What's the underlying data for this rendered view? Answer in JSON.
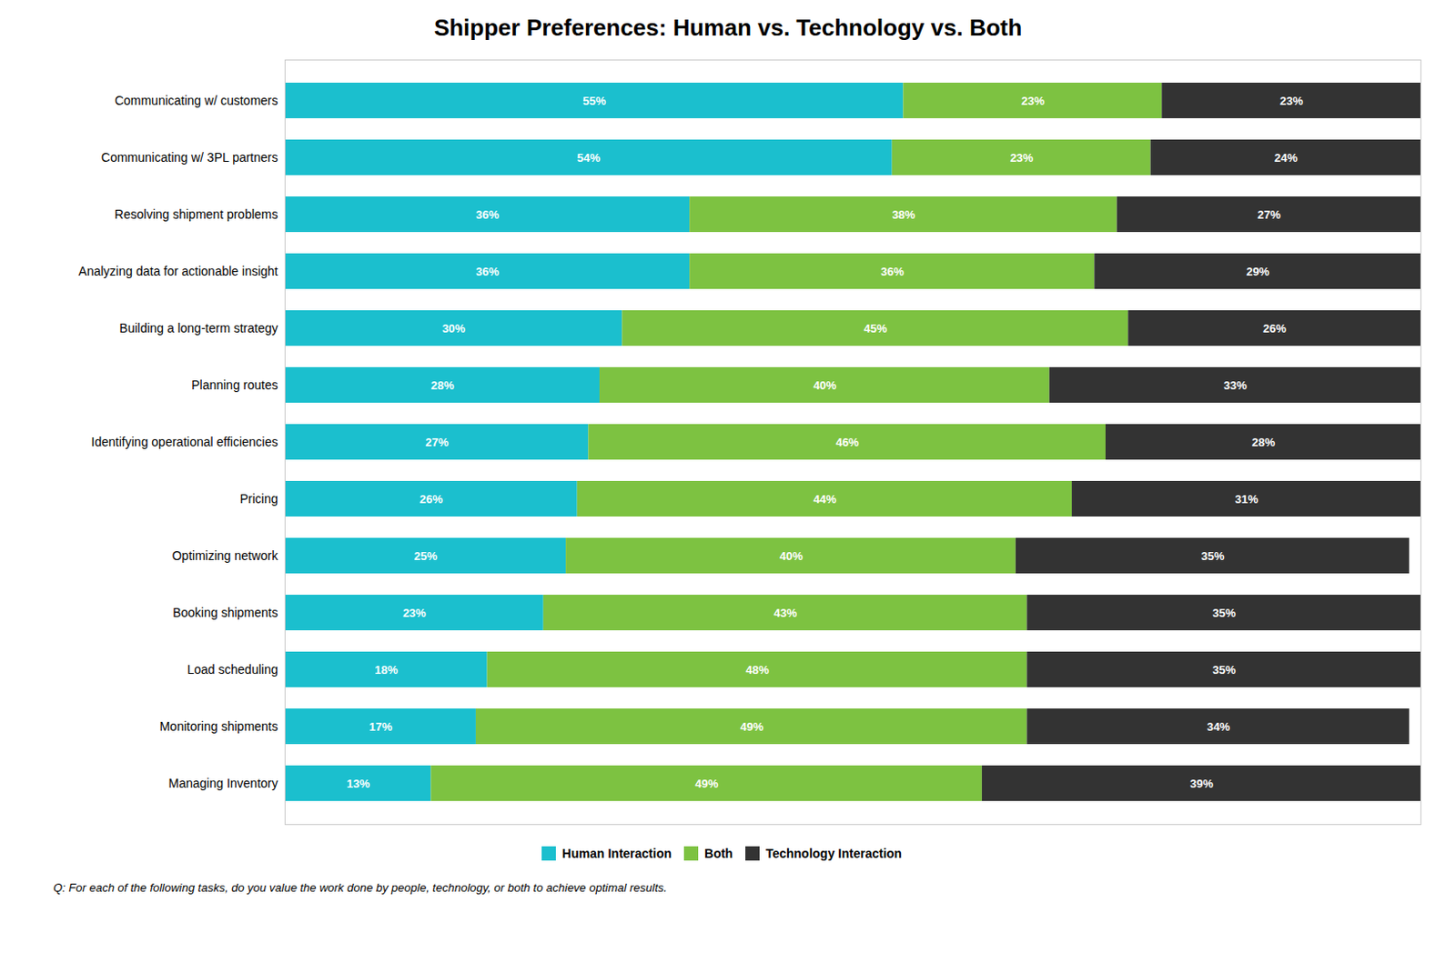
{
  "chart_data": {
    "type": "bar",
    "orientation": "horizontal",
    "stacked": true,
    "data_labels": true,
    "title": "Shipper Preferences: Human vs. Technology vs. Both",
    "categories": [
      "Communicating w/ customers",
      "Communicating w/ 3PL partners",
      "Resolving shipment problems",
      "Analyzing data for actionable insight",
      "Building a long-term strategy",
      "Planning routes",
      "Identifying operational efficiencies",
      "Pricing",
      "Optimizing network",
      "Booking shipments",
      "Load scheduling",
      "Monitoring shipments",
      "Managing Inventory"
    ],
    "series": [
      {
        "name": "Human Interaction",
        "color": "#1BBFCE",
        "values": [
          55,
          54,
          36,
          36,
          30,
          28,
          27,
          26,
          25,
          23,
          18,
          17,
          13
        ],
        "value_labels": [
          "55%",
          "54%",
          "36%",
          "36%",
          "30%",
          "28%",
          "27%",
          "26%",
          "25%",
          "23%",
          "18%",
          "17%",
          "13%"
        ]
      },
      {
        "name": "Both",
        "color": "#7DC241",
        "values": [
          23,
          23,
          38,
          36,
          45,
          40,
          46,
          44,
          40,
          43,
          48,
          49,
          49
        ],
        "value_labels": [
          "23%",
          "23%",
          "38%",
          "36%",
          "45%",
          "40%",
          "46%",
          "44%",
          "40%",
          "43%",
          "48%",
          "49%",
          "49%"
        ]
      },
      {
        "name": "Technology Interaction",
        "color": "#333333",
        "values": [
          23,
          24,
          27,
          29,
          26,
          33,
          28,
          31,
          35,
          35,
          35,
          34,
          39
        ],
        "value_labels": [
          "23%",
          "24%",
          "27%",
          "29%",
          "26%",
          "33%",
          "28%",
          "31%",
          "35%",
          "35%",
          "35%",
          "34%",
          "39%"
        ]
      }
    ],
    "xlim": [
      0,
      101
    ],
    "tick_labels": "y",
    "grid": false,
    "legend": "bottom",
    "annotations": [
      "Q: For each of the following tasks, do you value the work done by people, technology, or both to achieve optimal results."
    ]
  }
}
